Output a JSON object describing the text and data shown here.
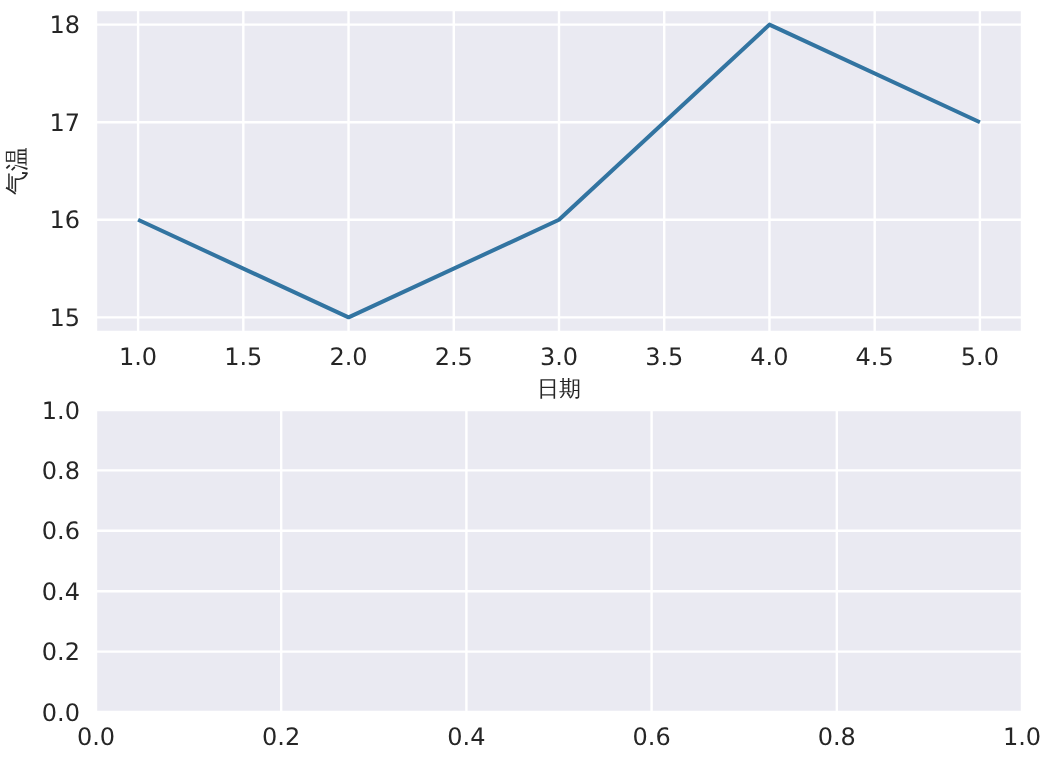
{
  "chart_data": [
    {
      "type": "line",
      "xlabel": "日期",
      "ylabel": "气温",
      "x": [
        1,
        2,
        3,
        4,
        5
      ],
      "series": [
        {
          "color": "#3274a1",
          "values": [
            16,
            15,
            16,
            18,
            17
          ]
        }
      ],
      "xlim": [
        0.8,
        5.2
      ],
      "ylim": [
        14.85,
        18.15
      ],
      "xticks": [
        {
          "value": 1,
          "label": "1.0"
        },
        {
          "value": 1.5,
          "label": "1.5"
        },
        {
          "value": 2,
          "label": "2.0"
        },
        {
          "value": 2.5,
          "label": "2.5"
        },
        {
          "value": 3,
          "label": "3.0"
        },
        {
          "value": 3.5,
          "label": "3.5"
        },
        {
          "value": 4,
          "label": "4.0"
        },
        {
          "value": 4.5,
          "label": "4.5"
        },
        {
          "value": 5,
          "label": "5.0"
        }
      ],
      "yticks": [
        15,
        16,
        17,
        18
      ],
      "grid": true,
      "marker": "none",
      "line_style": "solid"
    },
    {
      "type": "line",
      "xlim": [
        0,
        1
      ],
      "ylim": [
        0,
        1
      ],
      "xticks": [
        {
          "value": 0,
          "label": "0.0"
        },
        {
          "value": 0.2,
          "label": "0.2"
        },
        {
          "value": 0.4,
          "label": "0.4"
        },
        {
          "value": 0.6,
          "label": "0.6"
        },
        {
          "value": 0.8,
          "label": "0.8"
        },
        {
          "value": 1,
          "label": "1.0"
        }
      ],
      "yticks": [
        {
          "value": 0,
          "label": "0.0"
        },
        {
          "value": 0.2,
          "label": "0.2"
        },
        {
          "value": 0.4,
          "label": "0.4"
        },
        {
          "value": 0.6,
          "label": "0.6"
        },
        {
          "value": 0.8,
          "label": "0.8"
        },
        {
          "value": 1,
          "label": "1.0"
        }
      ],
      "grid": true
    }
  ]
}
